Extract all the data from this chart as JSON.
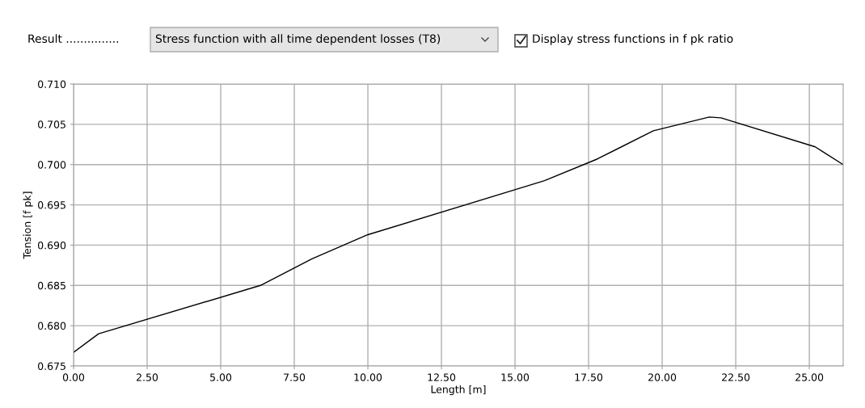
{
  "chart_data": {
    "type": "line",
    "xlabel": "Length [m]",
    "ylabel": "Tension [f pk]",
    "annotations": [
      "Result ...............",
      "Stress function with all time dependent losses (T8)",
      "Display stress functions in f pk ratio"
    ],
    "x": [
      0,
      0.85,
      6.35,
      8.1,
      10.0,
      16.0,
      17.8,
      19.7,
      21.6,
      22.0,
      25.2,
      26.15
    ],
    "series": [
      {
        "color": "#000000",
        "values": [
          0.6767,
          0.679,
          0.685,
          0.6883,
          0.6913,
          0.698,
          0.7007,
          0.7042,
          0.7059,
          0.7058,
          0.7022,
          0.7
        ]
      }
    ],
    "xlim": [
      0,
      26.15
    ],
    "ylim": [
      0.675,
      0.71
    ],
    "xticks": [
      {
        "value": 0,
        "label": "0.00"
      },
      {
        "value": 2.5,
        "label": "2.50"
      },
      {
        "value": 5,
        "label": "5.00"
      },
      {
        "value": 7.5,
        "label": "7.50"
      },
      {
        "value": 10,
        "label": "10.00"
      },
      {
        "value": 12.5,
        "label": "12.50"
      },
      {
        "value": 15,
        "label": "15.00"
      },
      {
        "value": 17.5,
        "label": "17.50"
      },
      {
        "value": 20,
        "label": "20.00"
      },
      {
        "value": 22.5,
        "label": "22.50"
      },
      {
        "value": 25,
        "label": "25.00"
      }
    ],
    "yticks": [
      {
        "value": 0.675,
        "label": "0.675"
      },
      {
        "value": 0.68,
        "label": "0.680"
      },
      {
        "value": 0.685,
        "label": "0.685"
      },
      {
        "value": 0.69,
        "label": "0.690"
      },
      {
        "value": 0.695,
        "label": "0.695"
      },
      {
        "value": 0.7,
        "label": "0.700"
      },
      {
        "value": 0.705,
        "label": "0.705"
      },
      {
        "value": 0.71,
        "label": "0.710"
      }
    ],
    "grid": true,
    "legend": false,
    "marker": "none",
    "line_style": "solid"
  }
}
